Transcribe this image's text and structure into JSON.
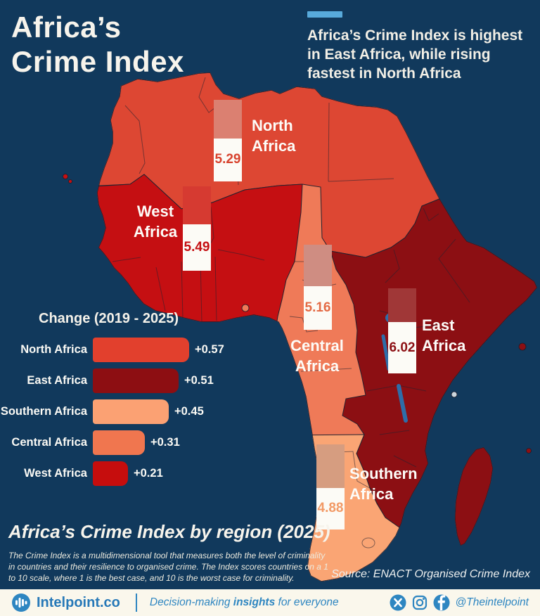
{
  "page": {
    "background": "#11395c",
    "accent_color": "#58aadb",
    "sea_color": "#11395c"
  },
  "title": {
    "line1": "Africa’s",
    "line2": "Crime Index"
  },
  "callout": {
    "text": "Africa’s Crime Index is highest in East Africa, while rising fastest in North Africa"
  },
  "chart_data": [
    {
      "type": "choropleth_map",
      "title": "Africa’s Crime Index by region (2025)",
      "unit": "Organised Crime Index score",
      "scale": [
        1,
        10
      ],
      "regions": [
        {
          "name": "North Africa",
          "label1": "North",
          "label2": "Africa",
          "value": 5.29,
          "value_label": "5.29",
          "color": "#dd4733",
          "gauge_top_color": "#db8071",
          "value_text_color": "#d8442f"
        },
        {
          "name": "West Africa",
          "label1": "West",
          "label2": "Africa",
          "value": 5.49,
          "value_label": "5.49",
          "color": "#c50f12",
          "gauge_top_color": "#d63a31",
          "value_text_color": "#c50f12"
        },
        {
          "name": "Central Africa",
          "label1": "Central",
          "label2": "Africa",
          "value": 5.16,
          "value_label": "5.16",
          "color": "#ef7a58",
          "gauge_top_color": "#cf8d82",
          "value_text_color": "#e46b46"
        },
        {
          "name": "East Africa",
          "label1": "East",
          "label2": "Africa",
          "value": 6.02,
          "value_label": "6.02",
          "color": "#8c0f13",
          "gauge_top_color": "#a03737",
          "value_text_color": "#8c0f13"
        },
        {
          "name": "Southern Africa",
          "label1": "Southern",
          "label2": "Africa",
          "value": 4.88,
          "value_label": "4.88",
          "color": "#faa574",
          "gauge_top_color": "#d69d80",
          "value_text_color": "#f29a66"
        }
      ]
    },
    {
      "type": "bar",
      "title": "Change (2019 - 2025)",
      "orientation": "horizontal",
      "categories": [
        "North Africa",
        "East Africa",
        "Southern Africa",
        "Central Africa",
        "West Africa"
      ],
      "values": [
        0.57,
        0.51,
        0.45,
        0.31,
        0.21
      ],
      "value_labels": [
        "+0.57",
        "+0.51",
        "+0.45",
        "+0.31",
        "+0.21"
      ],
      "bar_colors": [
        "#e2402d",
        "#8d0e12",
        "#fba173",
        "#f0764f",
        "#c60d0d"
      ],
      "xlim": [
        0,
        0.6
      ],
      "legend": "none",
      "grid": false
    }
  ],
  "section": {
    "heading": "Africa’s Crime Index by region (2025)",
    "description": "The Crime Index is a multidimensional tool that measures both the level of criminality in countries and their resilience to organised crime. The Index scores countries on a 1 to 10 scale, where 1 is the best case, and 10 is the worst case for criminality.",
    "source": "Source: ENACT Organised Crime Index"
  },
  "footer": {
    "brand": "Intelpoint.co",
    "tagline_prefix": "Decision-making ",
    "tagline_bold": "insights",
    "tagline_suffix": " for everyone",
    "handle": "@Theintelpoint",
    "icons": [
      "x-icon",
      "instagram-icon",
      "facebook-icon"
    ]
  }
}
